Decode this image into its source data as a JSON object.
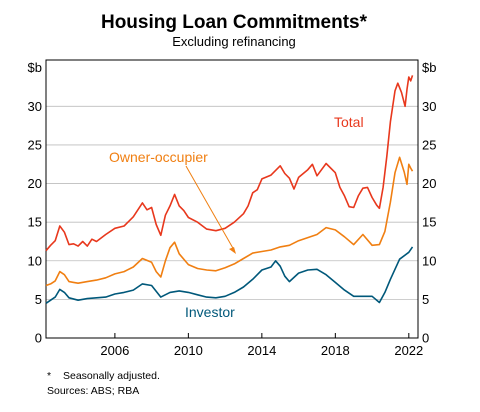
{
  "chart_data": {
    "type": "line",
    "title": "Housing Loan Commitments*",
    "subtitle": "Excluding refinancing",
    "y_unit_left": "$b",
    "y_unit_right": "$b",
    "ylim": [
      0,
      36
    ],
    "yticks": [
      "0",
      "5",
      "10",
      "15",
      "20",
      "25",
      "30"
    ],
    "xlim": [
      2002.25,
      2022.5
    ],
    "xticks": [
      "2006",
      "2010",
      "2014",
      "2018",
      "2022"
    ],
    "grid": true,
    "series": [
      {
        "name": "Total",
        "color": "#e8381d",
        "points": [
          [
            2002.25,
            11.3
          ],
          [
            2002.5,
            12.0
          ],
          [
            2002.75,
            12.6
          ],
          [
            2003.0,
            14.5
          ],
          [
            2003.25,
            13.7
          ],
          [
            2003.5,
            12.1
          ],
          [
            2003.75,
            12.2
          ],
          [
            2004.0,
            11.9
          ],
          [
            2004.25,
            12.5
          ],
          [
            2004.5,
            11.9
          ],
          [
            2004.75,
            12.8
          ],
          [
            2005.0,
            12.5
          ],
          [
            2005.5,
            13.4
          ],
          [
            2006.0,
            14.2
          ],
          [
            2006.5,
            14.5
          ],
          [
            2007.0,
            15.7
          ],
          [
            2007.5,
            17.5
          ],
          [
            2007.75,
            16.6
          ],
          [
            2008.0,
            16.9
          ],
          [
            2008.25,
            14.7
          ],
          [
            2008.5,
            13.3
          ],
          [
            2008.75,
            15.9
          ],
          [
            2009.0,
            17.1
          ],
          [
            2009.25,
            18.6
          ],
          [
            2009.5,
            17.1
          ],
          [
            2009.75,
            16.5
          ],
          [
            2010.0,
            15.6
          ],
          [
            2010.5,
            15.0
          ],
          [
            2011.0,
            14.1
          ],
          [
            2011.5,
            13.9
          ],
          [
            2012.0,
            14.2
          ],
          [
            2012.5,
            15.0
          ],
          [
            2013.0,
            16.1
          ],
          [
            2013.25,
            17.1
          ],
          [
            2013.5,
            18.8
          ],
          [
            2013.75,
            19.2
          ],
          [
            2014.0,
            20.6
          ],
          [
            2014.5,
            21.1
          ],
          [
            2015.0,
            22.3
          ],
          [
            2015.25,
            21.3
          ],
          [
            2015.5,
            20.7
          ],
          [
            2015.75,
            19.3
          ],
          [
            2016.0,
            20.8
          ],
          [
            2016.5,
            21.8
          ],
          [
            2016.75,
            22.5
          ],
          [
            2017.0,
            21.0
          ],
          [
            2017.5,
            22.6
          ],
          [
            2018.0,
            21.4
          ],
          [
            2018.25,
            19.5
          ],
          [
            2018.5,
            18.4
          ],
          [
            2018.75,
            17.0
          ],
          [
            2019.0,
            16.9
          ],
          [
            2019.25,
            18.4
          ],
          [
            2019.5,
            19.4
          ],
          [
            2019.75,
            19.5
          ],
          [
            2020.0,
            18.2
          ],
          [
            2020.25,
            17.2
          ],
          [
            2020.4,
            16.8
          ],
          [
            2020.6,
            19.5
          ],
          [
            2020.8,
            23.5
          ],
          [
            2021.0,
            28.0
          ],
          [
            2021.25,
            32.0
          ],
          [
            2021.4,
            33.0
          ],
          [
            2021.6,
            31.8
          ],
          [
            2021.8,
            30.0
          ],
          [
            2021.9,
            32.2
          ],
          [
            2022.0,
            33.8
          ],
          [
            2022.1,
            33.3
          ],
          [
            2022.2,
            34.0
          ]
        ]
      },
      {
        "name": "Owner-occupier",
        "color": "#f07f12",
        "points": [
          [
            2002.25,
            6.8
          ],
          [
            2002.5,
            7.0
          ],
          [
            2002.75,
            7.4
          ],
          [
            2003.0,
            8.6
          ],
          [
            2003.25,
            8.2
          ],
          [
            2003.5,
            7.3
          ],
          [
            2003.75,
            7.2
          ],
          [
            2004.0,
            7.1
          ],
          [
            2004.5,
            7.3
          ],
          [
            2005.0,
            7.5
          ],
          [
            2005.5,
            7.8
          ],
          [
            2006.0,
            8.3
          ],
          [
            2006.5,
            8.6
          ],
          [
            2007.0,
            9.2
          ],
          [
            2007.5,
            10.3
          ],
          [
            2008.0,
            9.8
          ],
          [
            2008.25,
            8.6
          ],
          [
            2008.5,
            7.9
          ],
          [
            2008.75,
            10.0
          ],
          [
            2009.0,
            11.7
          ],
          [
            2009.25,
            12.4
          ],
          [
            2009.5,
            10.9
          ],
          [
            2010.0,
            9.5
          ],
          [
            2010.5,
            9.0
          ],
          [
            2011.0,
            8.8
          ],
          [
            2011.5,
            8.7
          ],
          [
            2012.0,
            9.1
          ],
          [
            2012.5,
            9.6
          ],
          [
            2013.0,
            10.3
          ],
          [
            2013.5,
            11.0
          ],
          [
            2014.0,
            11.2
          ],
          [
            2014.5,
            11.4
          ],
          [
            2015.0,
            11.8
          ],
          [
            2015.5,
            12.0
          ],
          [
            2016.0,
            12.6
          ],
          [
            2016.5,
            13.0
          ],
          [
            2017.0,
            13.4
          ],
          [
            2017.5,
            14.3
          ],
          [
            2018.0,
            14.0
          ],
          [
            2018.5,
            13.1
          ],
          [
            2019.0,
            12.1
          ],
          [
            2019.5,
            13.4
          ],
          [
            2020.0,
            12.0
          ],
          [
            2020.4,
            12.1
          ],
          [
            2020.7,
            13.8
          ],
          [
            2021.0,
            17.6
          ],
          [
            2021.25,
            21.4
          ],
          [
            2021.5,
            23.4
          ],
          [
            2021.75,
            21.5
          ],
          [
            2021.9,
            19.9
          ],
          [
            2022.0,
            22.5
          ],
          [
            2022.1,
            22.0
          ],
          [
            2022.2,
            21.6
          ]
        ]
      },
      {
        "name": "Investor",
        "color": "#00587a",
        "points": [
          [
            2002.25,
            4.5
          ],
          [
            2002.5,
            4.9
          ],
          [
            2002.75,
            5.3
          ],
          [
            2003.0,
            6.3
          ],
          [
            2003.25,
            5.9
          ],
          [
            2003.5,
            5.2
          ],
          [
            2004.0,
            4.9
          ],
          [
            2004.5,
            5.1
          ],
          [
            2005.0,
            5.2
          ],
          [
            2005.5,
            5.3
          ],
          [
            2006.0,
            5.7
          ],
          [
            2006.5,
            5.9
          ],
          [
            2007.0,
            6.2
          ],
          [
            2007.5,
            7.0
          ],
          [
            2008.0,
            6.8
          ],
          [
            2008.5,
            5.3
          ],
          [
            2009.0,
            5.9
          ],
          [
            2009.5,
            6.1
          ],
          [
            2010.0,
            5.9
          ],
          [
            2010.5,
            5.6
          ],
          [
            2011.0,
            5.3
          ],
          [
            2011.5,
            5.2
          ],
          [
            2012.0,
            5.4
          ],
          [
            2012.5,
            5.9
          ],
          [
            2013.0,
            6.6
          ],
          [
            2013.5,
            7.6
          ],
          [
            2014.0,
            8.8
          ],
          [
            2014.5,
            9.2
          ],
          [
            2014.75,
            10.0
          ],
          [
            2015.0,
            9.3
          ],
          [
            2015.25,
            8.0
          ],
          [
            2015.5,
            7.3
          ],
          [
            2016.0,
            8.4
          ],
          [
            2016.5,
            8.8
          ],
          [
            2017.0,
            8.9
          ],
          [
            2017.5,
            8.2
          ],
          [
            2018.0,
            7.2
          ],
          [
            2018.5,
            6.2
          ],
          [
            2019.0,
            5.4
          ],
          [
            2019.5,
            5.4
          ],
          [
            2020.0,
            5.4
          ],
          [
            2020.4,
            4.6
          ],
          [
            2020.7,
            5.9
          ],
          [
            2021.0,
            7.6
          ],
          [
            2021.5,
            10.2
          ],
          [
            2022.0,
            11.1
          ],
          [
            2022.2,
            11.8
          ]
        ]
      }
    ],
    "annotations": {
      "total_label": "Total",
      "owner_label": "Owner-occupier",
      "investor_label": "Investor"
    }
  },
  "footnotes": {
    "asterisk": "*",
    "note": "Seasonally adjusted.",
    "sources": "Sources: ABS; RBA"
  }
}
